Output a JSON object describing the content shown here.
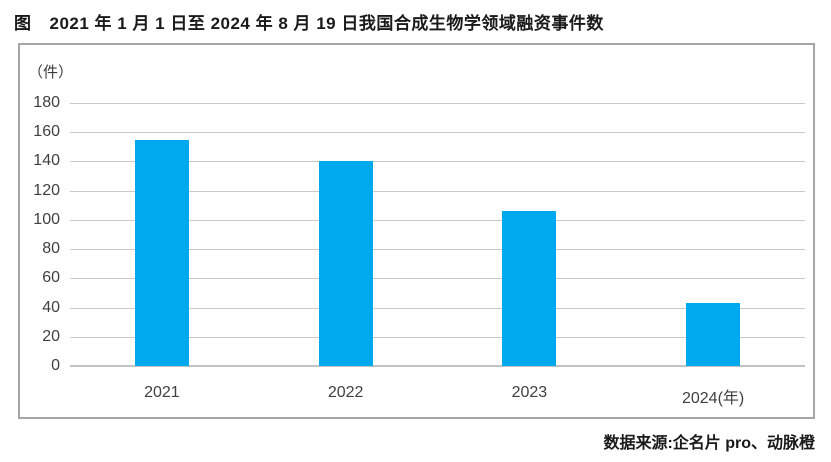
{
  "figure": {
    "label": "图",
    "title": "2021 年 1 月 1 日至 2024 年 8 月 19 日我国合成生物学领域融资事件数",
    "source": "数据来源:企名片 pro、动脉橙"
  },
  "chart_data": {
    "type": "bar",
    "title": "图 2021 年 1 月 1 日至 2024 年 8 月 19 日我国合成生物学领域融资事件数",
    "unit_label": "（件）",
    "categories": [
      "2021",
      "2022",
      "2023",
      "2024"
    ],
    "x_tick_labels": [
      "2021",
      "2022",
      "2023",
      "2024(年)"
    ],
    "values": [
      155,
      140,
      106,
      43
    ],
    "xlabel": "年",
    "ylabel": "件",
    "ylim": [
      0,
      180
    ],
    "yticks": [
      0,
      20,
      40,
      60,
      80,
      100,
      120,
      140,
      160,
      180
    ],
    "grid": true,
    "legend": false,
    "source": "数据来源:企名片 pro、动脉橙",
    "colors": {
      "bar": "#00A9EE",
      "grid": "#c9c9c9",
      "axis_line": "#c2c2c2",
      "frame_border": "#a6a6a6",
      "title_text": "#1a1a1a",
      "tick_text": "#404040"
    }
  }
}
